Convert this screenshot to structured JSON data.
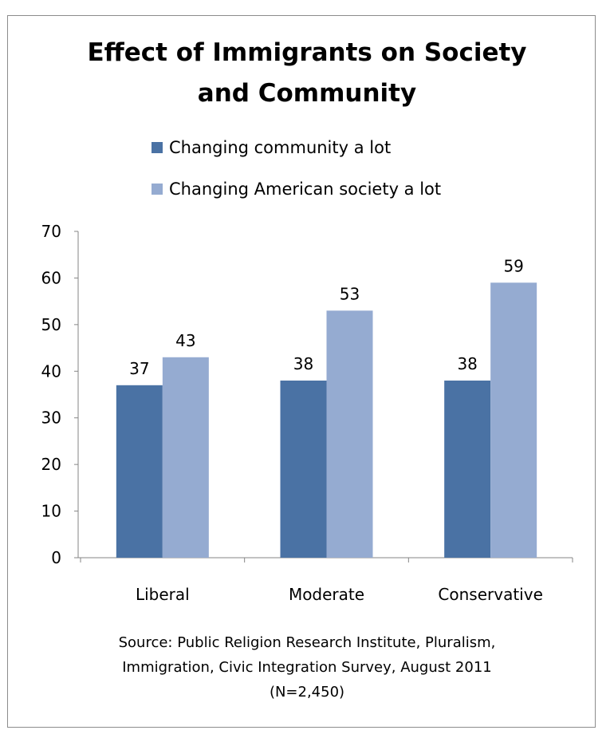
{
  "chart_data": {
    "type": "bar",
    "title": "Effect of Immigrants on Society and Community",
    "title_lines": [
      "Effect of Immigrants on Society",
      "and Community"
    ],
    "categories": [
      "Liberal",
      "Moderate",
      "Conservative"
    ],
    "series": [
      {
        "name": "Changing community a lot",
        "values": [
          37,
          38,
          38
        ],
        "color": "#4a72a4"
      },
      {
        "name": "Changing American society a lot",
        "values": [
          43,
          53,
          59
        ],
        "color": "#95abd1"
      }
    ],
    "xlabel": "",
    "ylabel": "",
    "ylim": [
      0,
      70
    ],
    "yticks": [
      0,
      10,
      20,
      30,
      40,
      50,
      60,
      70
    ],
    "grid": false,
    "legend_position": "top",
    "data_labels": true
  },
  "source_lines": [
    "Source: Public Religion Research Institute,  Pluralism,",
    "Immigration, Civic Integration Survey, August  2011",
    "(N=2,450)"
  ]
}
